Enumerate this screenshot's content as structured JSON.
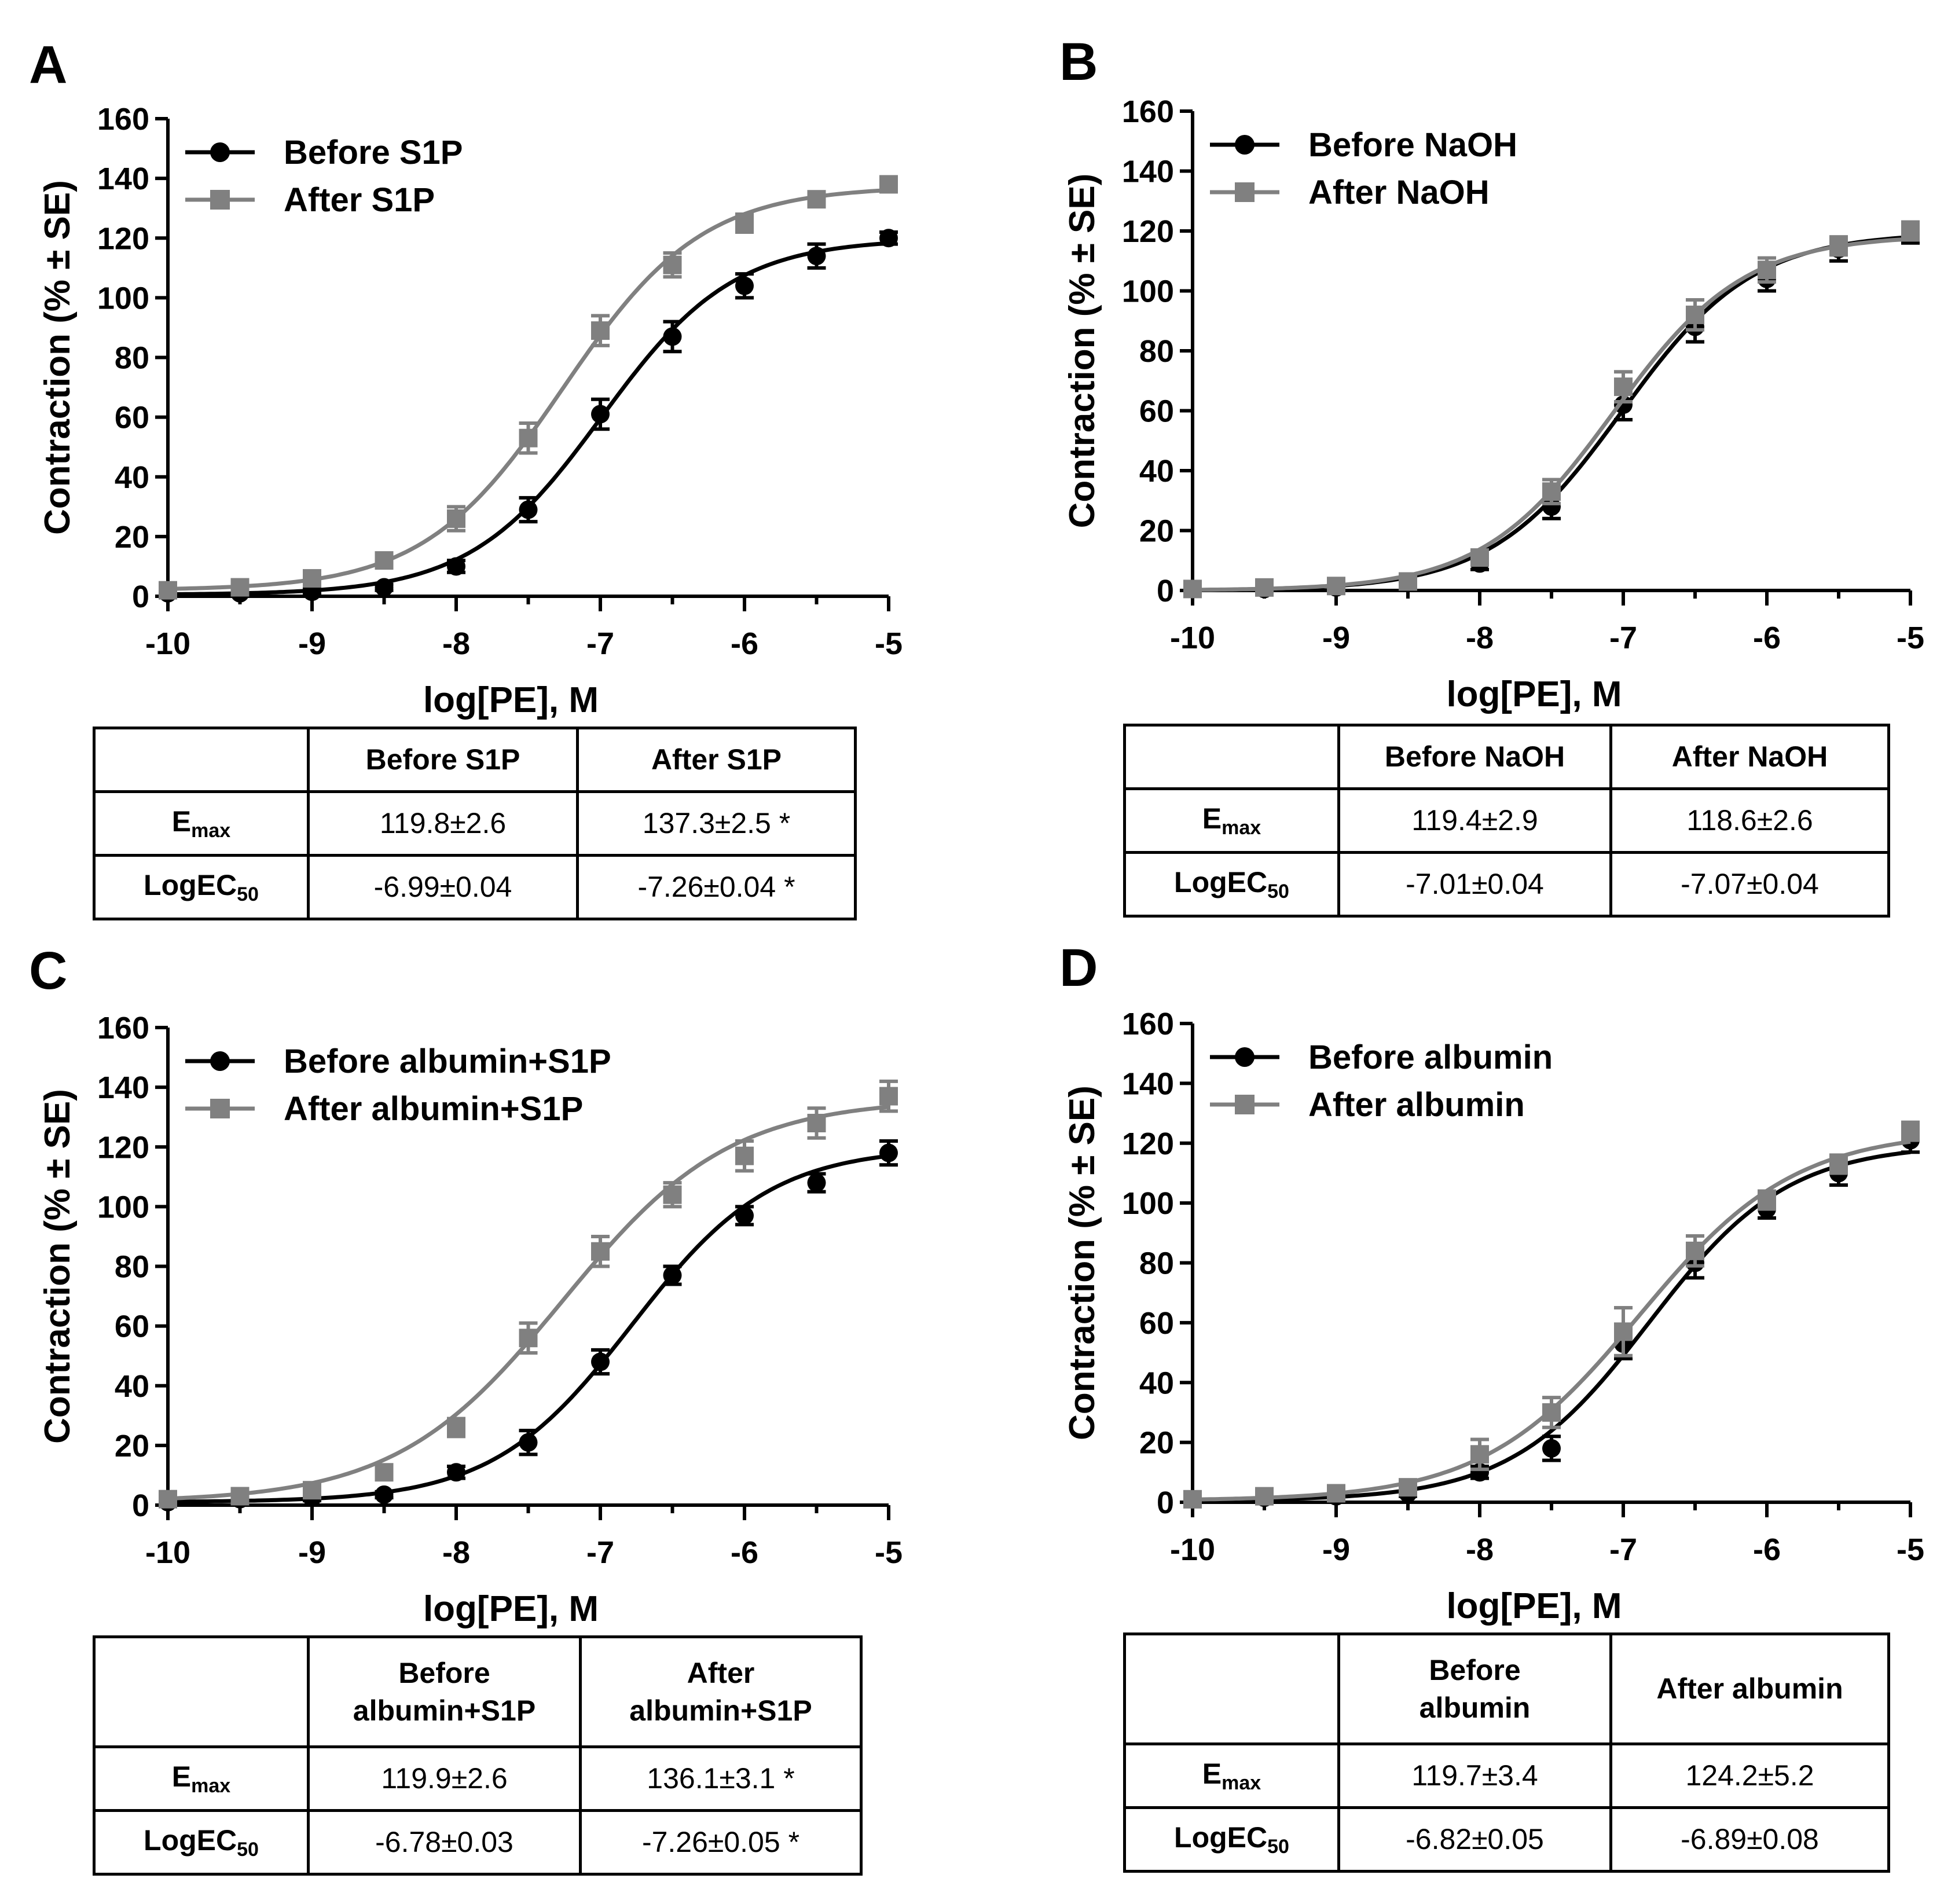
{
  "panels": [
    {
      "letter": "A",
      "chart_data": {
        "type": "line",
        "xlabel": "log[PE], M",
        "ylabel": "Contraction (% ± SE)",
        "xlim": [
          -10,
          -5
        ],
        "ylim": [
          0,
          160
        ],
        "xticks": [
          -10,
          -9,
          -8,
          -7,
          -6,
          -5
        ],
        "yticks": [
          0,
          20,
          40,
          60,
          80,
          100,
          120,
          140,
          160
        ],
        "legend_position": "top-left",
        "x": [
          -10,
          -9.5,
          -9,
          -8.5,
          -8,
          -7.5,
          -7,
          -6.5,
          -6,
          -5.5,
          -5
        ],
        "series": [
          {
            "name": "Before S1P",
            "marker": "circle",
            "color": "#000000",
            "values": [
              1,
              1,
              1.5,
              3,
              10,
              29,
              61,
              87,
              104,
              114,
              120
            ],
            "errors": [
              1,
              1,
              1,
              1,
              2,
              4,
              5,
              5,
              4,
              4,
              2
            ],
            "fit": {
              "bottom": 0.5,
              "top": 119.8,
              "logec50": -6.99,
              "hill": 0.95
            }
          },
          {
            "name": "After S1P",
            "marker": "square",
            "color": "#808080",
            "values": [
              2,
              3,
              6,
              12,
              26,
              53,
              89,
              111,
              125,
              133,
              138
            ],
            "errors": [
              1,
              1,
              2,
              2,
              4,
              5,
              5,
              4,
              3,
              2,
              2
            ],
            "fit": {
              "bottom": 2,
              "top": 137.3,
              "logec50": -7.26,
              "hill": 0.9
            }
          }
        ]
      },
      "table": {
        "col1": "Before S1P",
        "col2": "After S1P",
        "emax_label": "E",
        "emax_sub": "max",
        "logec_label": "LogEC",
        "logec_sub": "50",
        "emax": [
          "119.8±2.6",
          "137.3±2.5 *"
        ],
        "logec50": [
          "-6.99±0.04",
          "-7.26±0.04 *"
        ]
      }
    },
    {
      "letter": "B",
      "chart_data": {
        "type": "line",
        "xlabel": "log[PE], M",
        "ylabel": "Contraction (% ± SE)",
        "xlim": [
          -10,
          -5
        ],
        "ylim": [
          0,
          160
        ],
        "xticks": [
          -10,
          -9,
          -8,
          -7,
          -6,
          -5
        ],
        "yticks": [
          0,
          20,
          40,
          60,
          80,
          100,
          120,
          140,
          160
        ],
        "legend_position": "top-left",
        "x": [
          -10,
          -9.5,
          -9,
          -8.5,
          -8,
          -7.5,
          -7,
          -6.5,
          -6,
          -5.5,
          -5
        ],
        "series": [
          {
            "name": "Before NaOH",
            "marker": "circle",
            "color": "#000000",
            "values": [
              0.5,
              0.5,
              1,
              2.5,
              9,
              28,
              62,
              88,
              104,
              114,
              119
            ],
            "errors": [
              1,
              1,
              1,
              1,
              2,
              4,
              5,
              5,
              4,
              4,
              3
            ],
            "fit": {
              "bottom": 0,
              "top": 119.4,
              "logec50": -7.01,
              "hill": 0.95
            }
          },
          {
            "name": "After NaOH",
            "marker": "square",
            "color": "#808080",
            "values": [
              0.5,
              1,
              1.5,
              3,
              11,
              33,
              68,
              92,
              107,
              115,
              120
            ],
            "errors": [
              1,
              1,
              1,
              1,
              2,
              4,
              5,
              5,
              4,
              3,
              3
            ],
            "fit": {
              "bottom": 0,
              "top": 118.6,
              "logec50": -7.07,
              "hill": 0.95
            }
          }
        ]
      },
      "table": {
        "col1": "Before NaOH",
        "col2": "After NaOH",
        "emax_label": "E",
        "emax_sub": "max",
        "logec_label": "LogEC",
        "logec_sub": "50",
        "emax": [
          "119.4±2.9",
          "118.6±2.6"
        ],
        "logec50": [
          "-7.01±0.04",
          "-7.07±0.04"
        ]
      }
    },
    {
      "letter": "C",
      "chart_data": {
        "type": "line",
        "xlabel": "log[PE], M",
        "ylabel": "Contraction (% ± SE)",
        "xlim": [
          -10,
          -5
        ],
        "ylim": [
          0,
          160
        ],
        "xticks": [
          -10,
          -9,
          -8,
          -7,
          -6,
          -5
        ],
        "yticks": [
          0,
          20,
          40,
          60,
          80,
          100,
          120,
          140,
          160
        ],
        "legend_position": "top-left",
        "x": [
          -10,
          -9.5,
          -9,
          -8.5,
          -8,
          -7.5,
          -7,
          -6.5,
          -6,
          -5.5,
          -5
        ],
        "series": [
          {
            "name": "Before albumin+S1P",
            "marker": "circle",
            "color": "#000000",
            "values": [
              1,
              2,
              2.5,
              3.5,
              11,
              21,
              48,
              77,
              97,
              108,
              118
            ],
            "errors": [
              1,
              1,
              1,
              1,
              2,
              4,
              4,
              3,
              3,
              3,
              4
            ],
            "fit": {
              "bottom": 1,
              "top": 119.9,
              "logec50": -6.78,
              "hill": 0.9
            }
          },
          {
            "name": "After albumin+S1P",
            "marker": "square",
            "color": "#808080",
            "values": [
              2,
              3,
              5,
              11,
              26,
              56,
              85,
              104,
              117,
              128,
              137
            ],
            "errors": [
              1,
              1,
              2,
              2,
              3,
              5,
              5,
              4,
              5,
              5,
              5
            ],
            "fit": {
              "bottom": 1,
              "top": 136.1,
              "logec50": -7.26,
              "hill": 0.75
            }
          }
        ]
      },
      "table": {
        "col1_line1": "Before",
        "col1_line2": "albumin+S1P",
        "col2_line1": "After",
        "col2_line2": "albumin+S1P",
        "emax_label": "E",
        "emax_sub": "max",
        "logec_label": "LogEC",
        "logec_sub": "50",
        "emax": [
          "119.9±2.6",
          "136.1±3.1 *"
        ],
        "logec50": [
          "-6.78±0.03",
          "-7.26±0.05 *"
        ]
      }
    },
    {
      "letter": "D",
      "chart_data": {
        "type": "line",
        "xlabel": "log[PE], M",
        "ylabel": "Contraction (% ± SE)",
        "xlim": [
          -10,
          -5
        ],
        "ylim": [
          0,
          160
        ],
        "xticks": [
          -10,
          -9,
          -8,
          -7,
          -6,
          -5
        ],
        "yticks": [
          0,
          20,
          40,
          60,
          80,
          100,
          120,
          140,
          160
        ],
        "legend_position": "top-left",
        "x": [
          -10,
          -9.5,
          -9,
          -8.5,
          -8,
          -7.5,
          -7,
          -6.5,
          -6,
          -5.5,
          -5
        ],
        "series": [
          {
            "name": "Before albumin",
            "marker": "circle",
            "color": "#000000",
            "values": [
              1,
              1.5,
              2,
              3,
              10,
              18,
              53,
              80,
              98,
              110,
              121
            ],
            "errors": [
              1,
              1,
              1,
              1,
              2,
              4,
              5,
              5,
              3,
              4,
              4
            ],
            "fit": {
              "bottom": 0.5,
              "top": 119.7,
              "logec50": -6.82,
              "hill": 0.9
            }
          },
          {
            "name": "After albumin",
            "marker": "square",
            "color": "#808080",
            "values": [
              1,
              2,
              3,
              5,
              16,
              30,
              57,
              84,
              101,
              113,
              124
            ],
            "errors": [
              1,
              1,
              1,
              1,
              5,
              5,
              8,
              5,
              3,
              3,
              3
            ],
            "fit": {
              "bottom": 0.5,
              "top": 124.2,
              "logec50": -6.89,
              "hill": 0.8
            }
          }
        ]
      },
      "table": {
        "col1_line1": "Before",
        "col1_line2": "albumin",
        "col2": "After albumin",
        "emax_label": "E",
        "emax_sub": "max",
        "logec_label": "LogEC",
        "logec_sub": "50",
        "emax": [
          "119.7±3.4",
          "124.2±5.2"
        ],
        "logec50": [
          "-6.82±0.05",
          "-6.89±0.08"
        ]
      }
    }
  ]
}
